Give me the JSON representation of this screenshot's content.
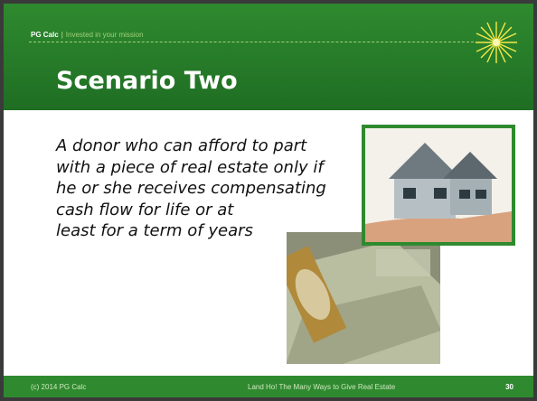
{
  "header": {
    "brand": "PG Calc",
    "separator": "|",
    "tagline": "Invested in your mission"
  },
  "title": "Scenario Two",
  "body": [
    "A donor who can afford to part",
    "with a piece of real estate only if",
    "he or she receives compensating",
    "cash flow for life or at",
    "least for a term of years"
  ],
  "footer": {
    "copyright": "(c) 2014 PG Calc",
    "title": "Land Ho! The Many Ways to Give Real Estate",
    "page": "30"
  }
}
